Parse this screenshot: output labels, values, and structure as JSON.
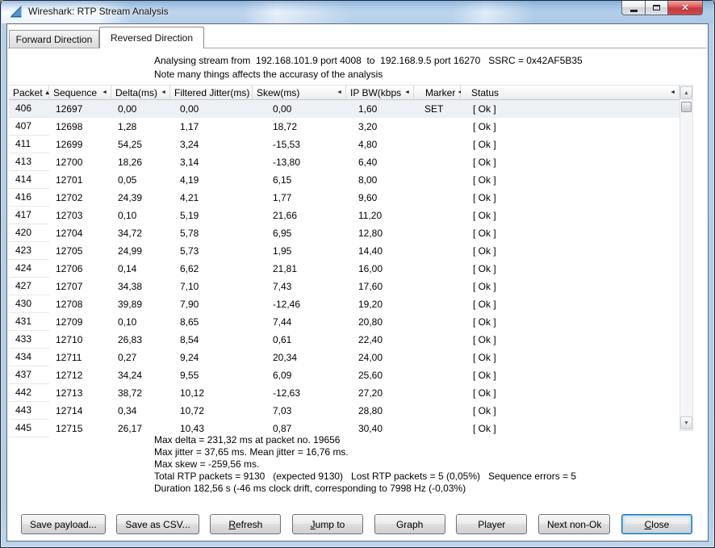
{
  "window": {
    "title": "Wireshark: RTP Stream Analysis",
    "controls": {
      "minimize": "minimize",
      "maximize": "maximize",
      "close": "close"
    }
  },
  "tabs": [
    {
      "label": "Forward Direction",
      "active": false
    },
    {
      "label": "Reversed Direction",
      "active": true
    }
  ],
  "info": {
    "line1": "Analysing stream from  192.168.101.9 port 4008  to  192.168.9.5 port 16270   SSRC = 0x42AF5B35",
    "line2": "Note many things affects the accurasy of the analysis"
  },
  "table": {
    "columns": [
      {
        "label": "Packet",
        "sort": "asc"
      },
      {
        "label": "Sequence",
        "sort": "left"
      },
      {
        "label": "Delta(ms)",
        "sort": "left"
      },
      {
        "label": "Filtered Jitter(ms)",
        "sort": "left"
      },
      {
        "label": "Skew(ms)",
        "sort": "left"
      },
      {
        "label": "IP BW(kbps",
        "sort": "left"
      },
      {
        "label": "Marker",
        "sort": "left"
      },
      {
        "label": "Status",
        "sort": "left"
      }
    ],
    "selected_row": 0,
    "rows": [
      [
        "406",
        "12697",
        "0,00",
        "0,00",
        "0,00",
        "1,60",
        "SET",
        "[ Ok ]"
      ],
      [
        "407",
        "12698",
        "1,28",
        "1,17",
        "18,72",
        "3,20",
        "",
        "[ Ok ]"
      ],
      [
        "411",
        "12699",
        "54,25",
        "3,24",
        "-15,53",
        "4,80",
        "",
        "[ Ok ]"
      ],
      [
        "413",
        "12700",
        "18,26",
        "3,14",
        "-13,80",
        "6,40",
        "",
        "[ Ok ]"
      ],
      [
        "414",
        "12701",
        "0,05",
        "4,19",
        "6,15",
        "8,00",
        "",
        "[ Ok ]"
      ],
      [
        "416",
        "12702",
        "24,39",
        "4,21",
        "1,77",
        "9,60",
        "",
        "[ Ok ]"
      ],
      [
        "417",
        "12703",
        "0,10",
        "5,19",
        "21,66",
        "11,20",
        "",
        "[ Ok ]"
      ],
      [
        "420",
        "12704",
        "34,72",
        "5,78",
        "6,95",
        "12,80",
        "",
        "[ Ok ]"
      ],
      [
        "423",
        "12705",
        "24,99",
        "5,73",
        "1,95",
        "14,40",
        "",
        "[ Ok ]"
      ],
      [
        "424",
        "12706",
        "0,14",
        "6,62",
        "21,81",
        "16,00",
        "",
        "[ Ok ]"
      ],
      [
        "427",
        "12707",
        "34,38",
        "7,10",
        "7,43",
        "17,60",
        "",
        "[ Ok ]"
      ],
      [
        "430",
        "12708",
        "39,89",
        "7,90",
        "-12,46",
        "19,20",
        "",
        "[ Ok ]"
      ],
      [
        "431",
        "12709",
        "0,10",
        "8,65",
        "7,44",
        "20,80",
        "",
        "[ Ok ]"
      ],
      [
        "433",
        "12710",
        "26,83",
        "8,54",
        "0,61",
        "22,40",
        "",
        "[ Ok ]"
      ],
      [
        "434",
        "12711",
        "0,27",
        "9,24",
        "20,34",
        "24,00",
        "",
        "[ Ok ]"
      ],
      [
        "437",
        "12712",
        "34,24",
        "9,55",
        "6,09",
        "25,60",
        "",
        "[ Ok ]"
      ],
      [
        "442",
        "12713",
        "38,72",
        "10,12",
        "-12,63",
        "27,20",
        "",
        "[ Ok ]"
      ],
      [
        "443",
        "12714",
        "0,34",
        "10,72",
        "7,03",
        "28,80",
        "",
        "[ Ok ]"
      ],
      [
        "445",
        "12715",
        "26,17",
        "10,43",
        "0,87",
        "30,40",
        "",
        "[ Ok ]"
      ]
    ]
  },
  "summary": {
    "lines": [
      "Max delta = 231,32 ms at packet no. 19656",
      "Max jitter = 37,65 ms. Mean jitter = 16,76 ms.",
      "Max skew = -259,56 ms.",
      "Total RTP packets = 9130   (expected 9130)   Lost RTP packets = 5 (0,05%)   Sequence errors = 5",
      "Duration 182,56 s (-46 ms clock drift, corresponding to 7998 Hz (-0,03%)"
    ]
  },
  "buttons": [
    {
      "label": "Save payload...",
      "mnemonic": "",
      "default": false
    },
    {
      "label": "Save as CSV...",
      "mnemonic": "",
      "default": false
    },
    {
      "label": "Refresh",
      "mnemonic": "R",
      "default": false
    },
    {
      "label": "Jump to",
      "mnemonic": "J",
      "default": false
    },
    {
      "label": "Graph",
      "mnemonic": "",
      "default": false
    },
    {
      "label": "Player",
      "mnemonic": "",
      "default": false
    },
    {
      "label": "Next non-Ok",
      "mnemonic": "",
      "default": false
    },
    {
      "label": "Close",
      "mnemonic": "C",
      "default": true
    }
  ],
  "colors": {
    "close_button_red": "#c13b3f",
    "selected_row_bg": "#edf0f4",
    "titlebar_glass_blue": "#b7cfe8",
    "default_button_glow": "#6db3e2"
  }
}
